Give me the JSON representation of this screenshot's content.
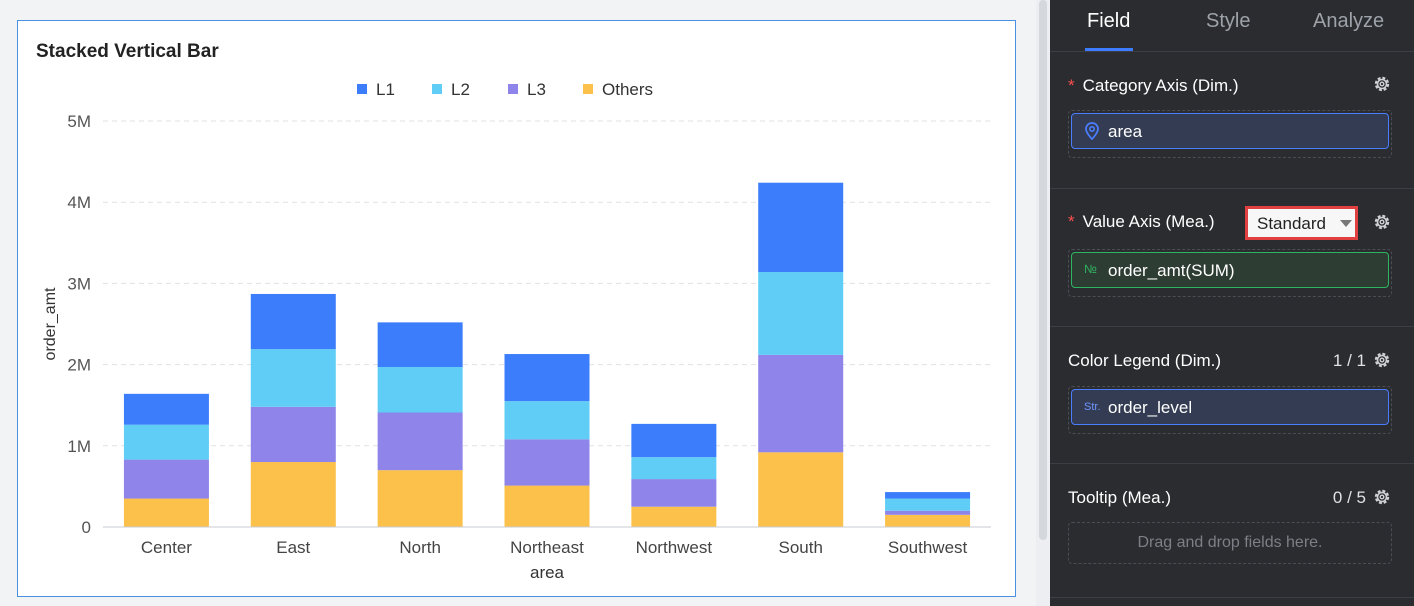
{
  "chart_panel": {
    "title": "Stacked Vertical Bar"
  },
  "chart_data": {
    "type": "bar",
    "stacked": true,
    "title": "Stacked Vertical Bar",
    "xlabel": "area",
    "ylabel": "order_amt",
    "categories": [
      "Center",
      "East",
      "North",
      "Northeast",
      "Northwest",
      "South",
      "Southwest"
    ],
    "series": [
      {
        "name": "Others",
        "color": "#fcc14a",
        "values": [
          350000,
          800000,
          700000,
          510000,
          250000,
          920000,
          150000
        ]
      },
      {
        "name": "L3",
        "color": "#8f84ea",
        "values": [
          480000,
          680000,
          710000,
          570000,
          340000,
          1200000,
          50000
        ]
      },
      {
        "name": "L2",
        "color": "#5fcdf5",
        "values": [
          430000,
          710000,
          560000,
          470000,
          270000,
          1020000,
          150000
        ]
      },
      {
        "name": "L1",
        "color": "#3b7dfa",
        "values": [
          380000,
          680000,
          550000,
          580000,
          410000,
          1100000,
          80000
        ]
      }
    ],
    "legend_order": [
      "L1",
      "L2",
      "L3",
      "Others"
    ],
    "ylim": [
      0,
      5000000
    ],
    "yticks": [
      0,
      1000000,
      2000000,
      3000000,
      4000000,
      5000000
    ],
    "ytick_labels": [
      "0",
      "1M",
      "2M",
      "3M",
      "4M",
      "5M"
    ],
    "grid": true,
    "legend_position": "top"
  },
  "config": {
    "tabs": [
      {
        "label": "Field",
        "active": true
      },
      {
        "label": "Style",
        "active": false
      },
      {
        "label": "Analyze",
        "active": false
      }
    ],
    "category_axis": {
      "title": "Category Axis (Dim.)",
      "required_mark": "*",
      "field": "area",
      "icon": "location-pin-icon"
    },
    "value_axis": {
      "title": "Value Axis (Mea.)",
      "required_mark": "*",
      "mode": "Standard",
      "field": "order_amt(SUM)",
      "type_badge": "№"
    },
    "color_legend": {
      "title": "Color Legend (Dim.)",
      "count": "1 / 1",
      "field": "order_level",
      "type_badge": "Str."
    },
    "tooltip": {
      "title": "Tooltip (Mea.)",
      "count": "0 / 5",
      "placeholder": "Drag and drop fields here."
    }
  },
  "colors": {
    "accent": "#3d7cff",
    "required": "#ff4d4f",
    "highlight_border": "#e04040"
  }
}
